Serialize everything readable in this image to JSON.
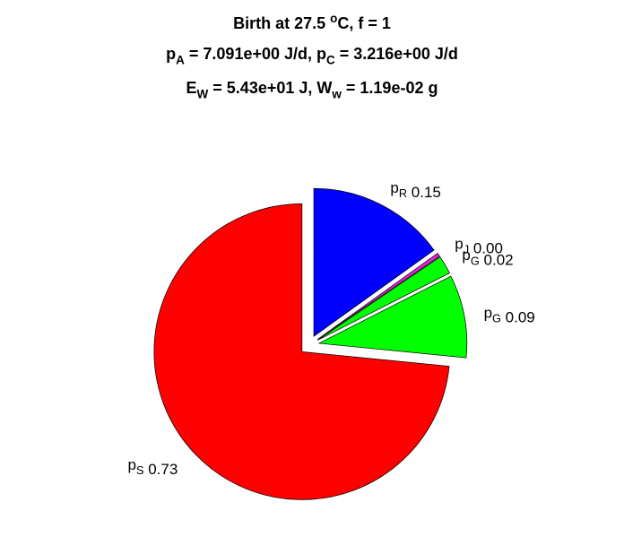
{
  "chart_data": {
    "type": "pie",
    "title": [
      "Birth at 27.5 ^oC, f = 1",
      "p_A = 7.091e+00 J/d, p_C = 3.216e+00 J/d",
      "E_W = 5.43e+01 J, W_w = 1.19e-02 g"
    ],
    "categories": [
      "p_S",
      "p_G",
      "p_G",
      "p_J",
      "p_R"
    ],
    "values": [
      0.73,
      0.09,
      0.02,
      0.004,
      0.15
    ],
    "value_labels": [
      "0.73",
      "0.09",
      "0.02",
      "0.00",
      "0.15"
    ],
    "colors": [
      "#ff0000",
      "#00ff00",
      "#00ff00",
      "#e020e0",
      "#0000ff"
    ],
    "exploded": true
  }
}
